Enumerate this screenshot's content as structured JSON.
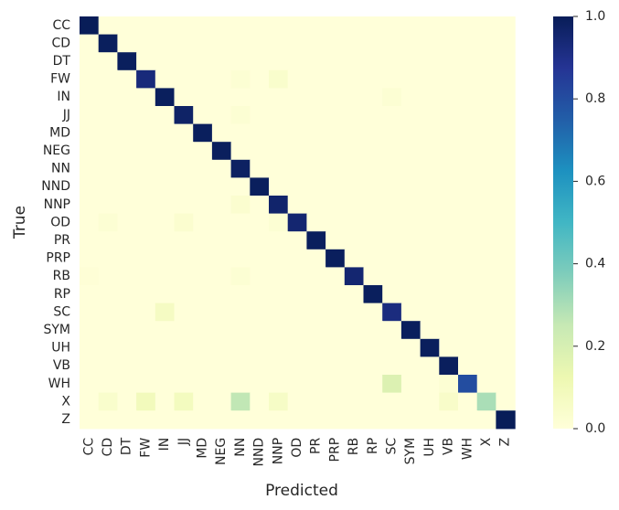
{
  "chart_data": {
    "type": "heatmap",
    "xlabel": "Predicted",
    "ylabel": "True",
    "labels": [
      "CC",
      "CD",
      "DT",
      "FW",
      "IN",
      "JJ",
      "MD",
      "NEG",
      "NN",
      "NND",
      "NNP",
      "OD",
      "PR",
      "PRP",
      "RB",
      "RP",
      "SC",
      "SYM",
      "UH",
      "VB",
      "WH",
      "X",
      "Z"
    ],
    "colorbar": {
      "min": 0.0,
      "max": 1.0,
      "ticks": [
        "0.0",
        "0.2",
        "0.4",
        "0.6",
        "0.8",
        "1.0"
      ]
    },
    "diagonal": [
      1.0,
      0.99,
      0.99,
      0.93,
      0.99,
      0.97,
      0.99,
      0.99,
      0.98,
      0.99,
      0.96,
      0.95,
      0.99,
      0.99,
      0.95,
      0.99,
      0.92,
      0.99,
      0.99,
      0.99,
      0.8,
      0.3,
      1.0
    ],
    "off_diagonal": [
      {
        "row": "FW",
        "col": "NN",
        "value": 0.02
      },
      {
        "row": "FW",
        "col": "NNP",
        "value": 0.04
      },
      {
        "row": "IN",
        "col": "SC",
        "value": 0.02
      },
      {
        "row": "JJ",
        "col": "NN",
        "value": 0.02
      },
      {
        "row": "NNP",
        "col": "NN",
        "value": 0.03
      },
      {
        "row": "OD",
        "col": "CD",
        "value": 0.02
      },
      {
        "row": "OD",
        "col": "JJ",
        "value": 0.03
      },
      {
        "row": "OD",
        "col": "NNP",
        "value": 0.02
      },
      {
        "row": "RB",
        "col": "CC",
        "value": 0.01
      },
      {
        "row": "RB",
        "col": "NN",
        "value": 0.02
      },
      {
        "row": "SC",
        "col": "IN",
        "value": 0.07
      },
      {
        "row": "WH",
        "col": "SC",
        "value": 0.18
      },
      {
        "row": "WH",
        "col": "VB",
        "value": 0.02
      },
      {
        "row": "X",
        "col": "CD",
        "value": 0.04
      },
      {
        "row": "X",
        "col": "FW",
        "value": 0.09
      },
      {
        "row": "X",
        "col": "JJ",
        "value": 0.08
      },
      {
        "row": "X",
        "col": "NN",
        "value": 0.26
      },
      {
        "row": "X",
        "col": "NNP",
        "value": 0.06
      },
      {
        "row": "X",
        "col": "VB",
        "value": 0.05
      }
    ]
  }
}
